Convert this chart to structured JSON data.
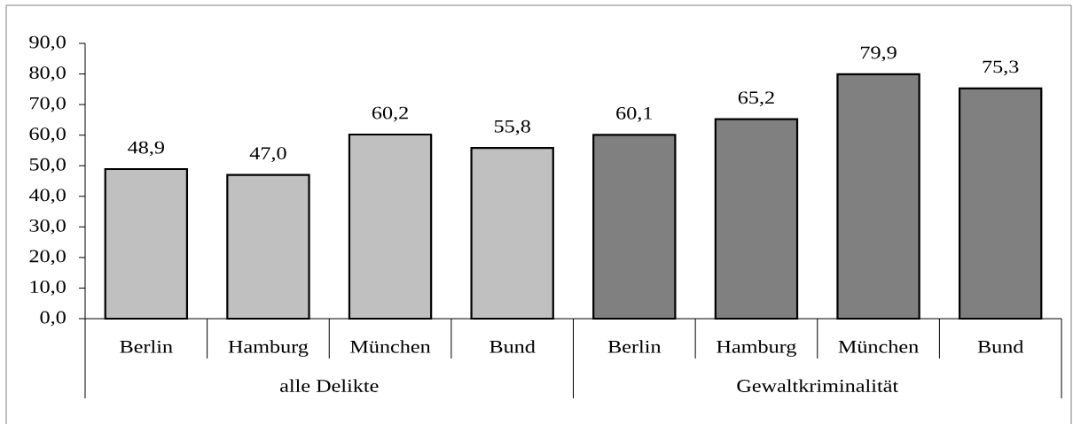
{
  "chart_data": {
    "type": "bar",
    "categories": [
      "Berlin",
      "Hamburg",
      "München",
      "Bund",
      "Berlin",
      "Hamburg",
      "München",
      "Bund"
    ],
    "series": [
      {
        "name": "alle Delikte",
        "color": "#c0c0c0",
        "values": [
          48.9,
          47.0,
          60.2,
          55.8,
          null,
          null,
          null,
          null
        ],
        "value_labels": [
          "48,9",
          "47,0",
          "60,2",
          "55,8",
          null,
          null,
          null,
          null
        ]
      },
      {
        "name": "Gewaltkriminalität",
        "color": "#808080",
        "values": [
          null,
          null,
          null,
          null,
          60.1,
          65.2,
          79.9,
          75.3
        ],
        "value_labels": [
          null,
          null,
          null,
          null,
          "60,1",
          "65,2",
          "79,9",
          "75,3"
        ]
      }
    ],
    "legend": "bottom",
    "ylim": [
      0,
      90
    ],
    "yticks": [
      {
        "value": 0,
        "label": "0,0"
      },
      {
        "value": 10,
        "label": "10,0"
      },
      {
        "value": 20,
        "label": "20,0"
      },
      {
        "value": 30,
        "label": "30,0"
      },
      {
        "value": 40,
        "label": "40,0"
      },
      {
        "value": 50,
        "label": "50,0"
      },
      {
        "value": 60,
        "label": "60,0"
      },
      {
        "value": 70,
        "label": "70,0"
      },
      {
        "value": 80,
        "label": "80,0"
      },
      {
        "value": 90,
        "label": "90,0"
      }
    ]
  }
}
